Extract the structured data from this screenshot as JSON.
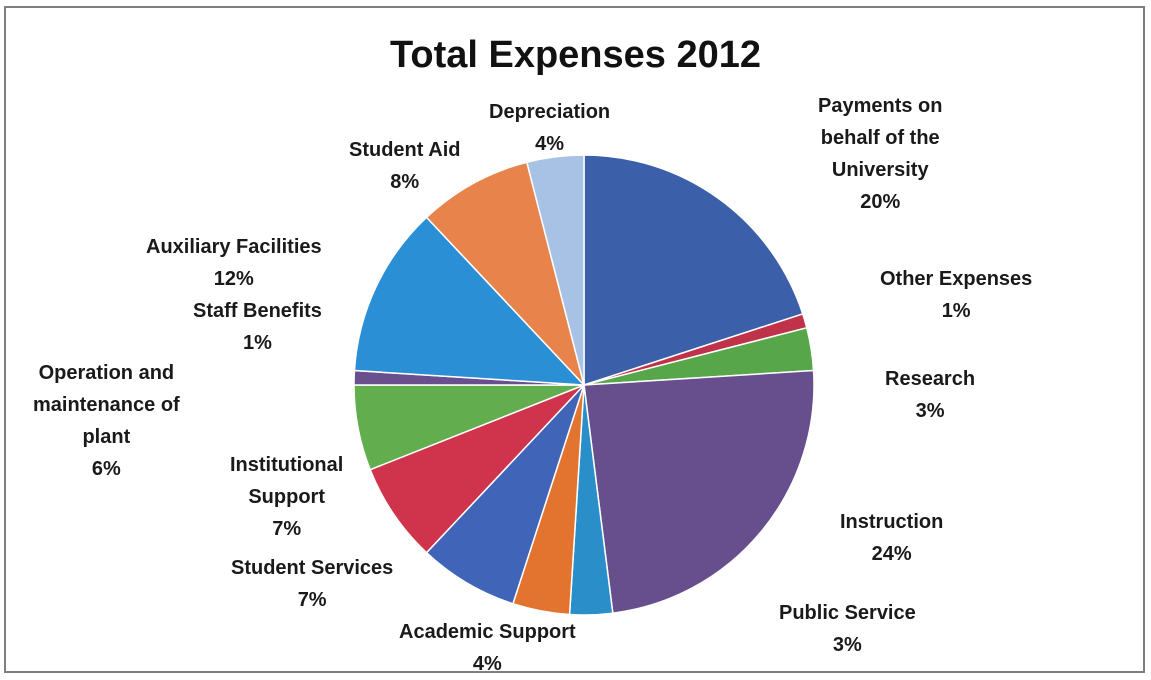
{
  "chart_data": {
    "type": "pie",
    "title": "Total Expenses 2012",
    "start_angle_deg": 0,
    "direction": "clockwise",
    "slices": [
      {
        "label": [
          "Payments on",
          "behalf of the",
          "University"
        ],
        "value": 20,
        "value_label": "20%",
        "color": "#3b5fa9"
      },
      {
        "label": [
          "Other Expenses"
        ],
        "value": 1,
        "value_label": "1%",
        "color": "#c0324a"
      },
      {
        "label": [
          "Research"
        ],
        "value": 3,
        "value_label": "3%",
        "color": "#58a64a"
      },
      {
        "label": [
          "Instruction"
        ],
        "value": 24,
        "value_label": "24%",
        "color": "#674f8d"
      },
      {
        "label": [
          "Public Service"
        ],
        "value": 3,
        "value_label": "3%",
        "color": "#2a8fc8"
      },
      {
        "label": [
          "Academic Support"
        ],
        "value": 4,
        "value_label": "4%",
        "color": "#e3742f"
      },
      {
        "label": [
          "Student Services"
        ],
        "value": 7,
        "value_label": "7%",
        "color": "#3f64b8"
      },
      {
        "label": [
          "Institutional",
          "Support"
        ],
        "value": 7,
        "value_label": "7%",
        "color": "#d0344c"
      },
      {
        "label": [
          "Operation and",
          "maintenance of",
          "plant"
        ],
        "value": 6,
        "value_label": "6%",
        "color": "#62ad4d"
      },
      {
        "label": [
          "Staff Benefits"
        ],
        "value": 1,
        "value_label": "1%",
        "color": "#6a4f8e"
      },
      {
        "label": [
          "Auxiliary Facilities"
        ],
        "value": 12,
        "value_label": "12%",
        "color": "#2b8fd6"
      },
      {
        "label": [
          "Student Aid"
        ],
        "value": 8,
        "value_label": "8%",
        "color": "#e9834c"
      },
      {
        "label": [
          "Depreciation"
        ],
        "value": 4,
        "value_label": "4%",
        "color": "#a8c2e6"
      }
    ]
  }
}
